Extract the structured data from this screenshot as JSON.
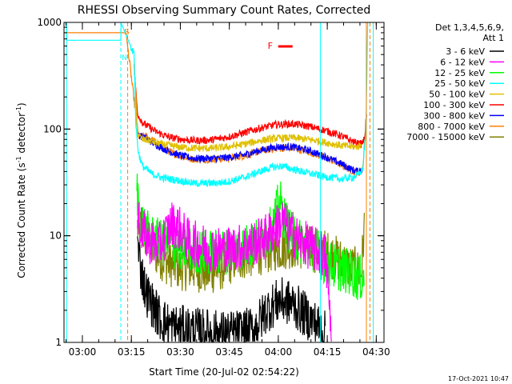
{
  "chart_data": {
    "type": "line",
    "title": "RHESSI Observing Summary Count Rates, Corrected",
    "xlabel": "Start Time (20-Jul-02 02:54:22)",
    "ylabel_main": "Corrected Count Rate (s",
    "ylabel_sup1": "-1",
    "ylabel_mid": " detector",
    "ylabel_sup2": "-1",
    "ylabel_end": ")",
    "y_scale": "log",
    "ylim": [
      1,
      1000
    ],
    "xlim_minutes": [
      0,
      98
    ],
    "x_ticks": [
      {
        "m": 5.63,
        "label": "03:00"
      },
      {
        "m": 20.63,
        "label": "03:15"
      },
      {
        "m": 35.63,
        "label": "03:30"
      },
      {
        "m": 50.63,
        "label": "03:45"
      },
      {
        "m": 65.63,
        "label": "04:00"
      },
      {
        "m": 80.63,
        "label": "04:15"
      },
      {
        "m": 95.63,
        "label": "04:30"
      }
    ],
    "y_ticks": [
      {
        "v": 1,
        "label": "1"
      },
      {
        "v": 10,
        "label": "10"
      },
      {
        "v": 100,
        "label": "100"
      },
      {
        "v": 1000,
        "label": "1000"
      }
    ],
    "legend_header": "Det 1,3,4,5,6,9,",
    "legend_header2": "Att 1",
    "series": [
      {
        "name": "3 - 6 keV",
        "color": "#000000",
        "points": [
          [
            22.5,
            8
          ],
          [
            23.5,
            5
          ],
          [
            25,
            3
          ],
          [
            28,
            2
          ],
          [
            30,
            1.6
          ],
          [
            33,
            1.4
          ],
          [
            40,
            1.3
          ],
          [
            50,
            1.2
          ],
          [
            58,
            1.3
          ],
          [
            62,
            2
          ],
          [
            66,
            2.5
          ],
          [
            70,
            2.3
          ],
          [
            74,
            1.8
          ],
          [
            77,
            1.5
          ],
          [
            80,
            1.2
          ]
        ]
      },
      {
        "name": "6 - 12 keV",
        "color": "#ff00ff",
        "points": [
          [
            22.5,
            15
          ],
          [
            24,
            11
          ],
          [
            26,
            9
          ],
          [
            29,
            8
          ],
          [
            31,
            10
          ],
          [
            33,
            13
          ],
          [
            35,
            12
          ],
          [
            38,
            9
          ],
          [
            42,
            8
          ],
          [
            46,
            7.5
          ],
          [
            50,
            7.5
          ],
          [
            55,
            8
          ],
          [
            60,
            9
          ],
          [
            64,
            11
          ],
          [
            67,
            14
          ],
          [
            69,
            11
          ],
          [
            72,
            9
          ],
          [
            75,
            8
          ],
          [
            78,
            7
          ],
          [
            80,
            6.5
          ],
          [
            81,
            3
          ],
          [
            82,
            1
          ]
        ]
      },
      {
        "name": "12 - 25 keV",
        "color": "#00ff00",
        "points": [
          [
            22.3,
            28
          ],
          [
            23,
            18
          ],
          [
            24,
            13
          ],
          [
            26,
            10
          ],
          [
            30,
            8.5
          ],
          [
            34,
            8
          ],
          [
            38,
            7.5
          ],
          [
            42,
            7
          ],
          [
            46,
            7
          ],
          [
            50,
            7.2
          ],
          [
            55,
            7.8
          ],
          [
            60,
            9
          ],
          [
            64,
            12
          ],
          [
            66,
            22
          ],
          [
            67,
            16
          ],
          [
            69,
            11
          ],
          [
            72,
            9
          ],
          [
            75,
            8
          ],
          [
            78,
            7
          ],
          [
            80,
            5.5
          ],
          [
            84,
            5
          ],
          [
            88,
            4.5
          ],
          [
            90,
            4
          ],
          [
            92,
            4
          ]
        ]
      },
      {
        "name": "25 - 50 keV",
        "color": "#00ffff",
        "points": [
          [
            0,
            1000
          ],
          [
            0.8,
            1000
          ],
          [
            0.8,
            680
          ],
          [
            17.4,
            680
          ],
          [
            17.4,
            1000
          ],
          [
            21.5,
            500
          ],
          [
            22,
            110
          ],
          [
            22.8,
            60
          ],
          [
            24,
            45
          ],
          [
            27,
            38
          ],
          [
            30,
            35
          ],
          [
            35,
            33
          ],
          [
            40,
            31
          ],
          [
            45,
            31
          ],
          [
            50,
            32
          ],
          [
            55,
            35
          ],
          [
            60,
            40
          ],
          [
            64,
            44
          ],
          [
            67,
            45
          ],
          [
            70,
            42
          ],
          [
            73,
            40
          ],
          [
            76,
            38
          ],
          [
            79,
            36
          ],
          [
            82,
            35
          ],
          [
            85,
            34
          ],
          [
            88,
            35
          ],
          [
            90,
            37
          ],
          [
            91.5,
            42
          ],
          [
            92.5,
            100
          ],
          [
            93,
            1000
          ]
        ]
      },
      {
        "name": "50 - 100 keV",
        "color": "#e0c000",
        "points": [
          [
            21.5,
            450
          ],
          [
            22.5,
            90
          ],
          [
            24,
            80
          ],
          [
            26,
            78
          ],
          [
            30,
            72
          ],
          [
            35,
            68
          ],
          [
            40,
            66
          ],
          [
            45,
            66
          ],
          [
            50,
            68
          ],
          [
            55,
            72
          ],
          [
            60,
            78
          ],
          [
            65,
            82
          ],
          [
            70,
            83
          ],
          [
            75,
            80
          ],
          [
            80,
            75
          ],
          [
            85,
            70
          ],
          [
            89,
            68
          ],
          [
            91,
            70
          ]
        ]
      },
      {
        "name": "100 - 300 keV",
        "color": "#ff0000",
        "points": [
          [
            21.5,
            380
          ],
          [
            22.5,
            140
          ],
          [
            24,
            115
          ],
          [
            28,
            95
          ],
          [
            32,
            84
          ],
          [
            36,
            80
          ],
          [
            40,
            78
          ],
          [
            45,
            79
          ],
          [
            50,
            84
          ],
          [
            55,
            92
          ],
          [
            60,
            102
          ],
          [
            65,
            110
          ],
          [
            70,
            112
          ],
          [
            75,
            106
          ],
          [
            80,
            97
          ],
          [
            85,
            86
          ],
          [
            89,
            75
          ],
          [
            91,
            72
          ],
          [
            92,
            80
          ],
          [
            92.7,
            130
          ]
        ]
      },
      {
        "name": "300 - 800 keV",
        "color": "#0000ff",
        "points": [
          [
            22.8,
            88
          ],
          [
            25,
            82
          ],
          [
            28,
            72
          ],
          [
            32,
            62
          ],
          [
            36,
            56
          ],
          [
            40,
            53
          ],
          [
            45,
            53
          ],
          [
            50,
            54
          ],
          [
            55,
            57
          ],
          [
            60,
            63
          ],
          [
            65,
            68
          ],
          [
            70,
            68
          ],
          [
            75,
            63
          ],
          [
            80,
            55
          ],
          [
            85,
            47
          ],
          [
            88,
            42
          ],
          [
            90,
            40
          ],
          [
            91.5,
            43
          ]
        ]
      },
      {
        "name": "800 - 7000 keV",
        "color": "#ff7f00",
        "points": [
          [
            0,
            800
          ],
          [
            17.5,
            800
          ],
          [
            19,
            800
          ],
          [
            22.8,
            85
          ],
          [
            25,
            86
          ],
          [
            28,
            76
          ],
          [
            32,
            62
          ],
          [
            36,
            55
          ],
          [
            40,
            52
          ],
          [
            45,
            52
          ],
          [
            50,
            53
          ],
          [
            55,
            56
          ],
          [
            60,
            62
          ],
          [
            65,
            66
          ],
          [
            70,
            66
          ],
          [
            75,
            61
          ],
          [
            80,
            54
          ],
          [
            85,
            46
          ],
          [
            88,
            41
          ],
          [
            90,
            38
          ],
          [
            91.5,
            42
          ],
          [
            92.5,
            130
          ]
        ]
      },
      {
        "name": "7000 - 15000 keV",
        "color": "#808000",
        "points": [
          [
            22.5,
            12
          ],
          [
            24,
            11
          ],
          [
            26,
            9
          ],
          [
            28,
            7
          ],
          [
            32,
            5.5
          ],
          [
            36,
            5
          ],
          [
            40,
            5
          ],
          [
            44,
            4.5
          ],
          [
            48,
            5
          ],
          [
            52,
            6
          ],
          [
            56,
            6.5
          ],
          [
            60,
            7
          ],
          [
            64,
            7.5
          ],
          [
            68,
            8
          ],
          [
            72,
            8
          ],
          [
            76,
            7.5
          ],
          [
            80,
            7
          ],
          [
            84,
            6
          ],
          [
            88,
            5
          ],
          [
            91,
            4.5
          ],
          [
            92,
            12
          ]
        ]
      }
    ],
    "vlines": [
      {
        "m": 0.8,
        "color": "#00ffff",
        "dash": false
      },
      {
        "m": 17.4,
        "color": "#00ffff",
        "dash": true
      },
      {
        "m": 19.5,
        "color": "#ff7f00",
        "dash": true
      },
      {
        "m": 78.5,
        "color": "#00ffff",
        "dash": false
      },
      {
        "m": 92.6,
        "color": "#ff7f00",
        "dash": false
      },
      {
        "m": 93.7,
        "color": "#ff7f00",
        "dash": true
      },
      {
        "m": 94.7,
        "color": "#00ffff",
        "dash": false
      }
    ],
    "annotations": {
      "s_marker": "S",
      "n_marker": "N",
      "flare_marker": "F",
      "flare_start_m": 65.6,
      "flare_end_m": 70
    },
    "timestamp": "17-Oct-2021 10:47"
  }
}
